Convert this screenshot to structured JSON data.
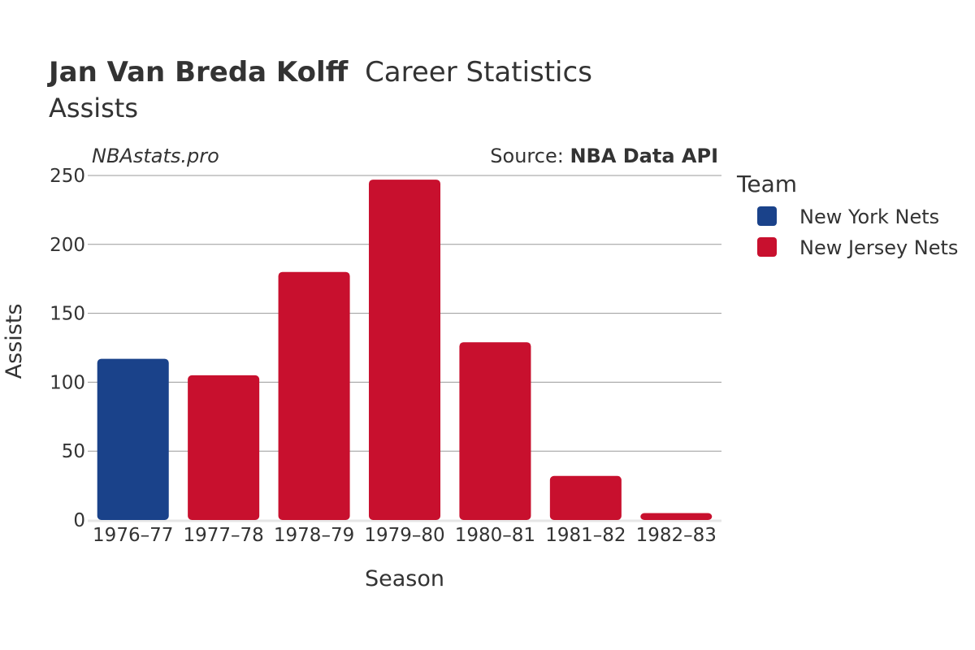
{
  "title": {
    "player": "Jan Van Breda Kolff",
    "suffix": "Career Statistics",
    "subtitle": "Assists"
  },
  "watermark": "NBAstats.pro",
  "source": {
    "prefix": "Source: ",
    "name": "NBA Data API"
  },
  "legend": {
    "title": "Team",
    "items": [
      {
        "label": "New York Nets",
        "color": "#1a428a"
      },
      {
        "label": "New Jersey Nets",
        "color": "#c8102e"
      }
    ]
  },
  "chart_data": {
    "type": "bar",
    "title": "Jan Van Breda Kolff Career Statistics",
    "subtitle": "Assists",
    "xlabel": "Season",
    "ylabel": "Assists",
    "categories": [
      "1976–77",
      "1977–78",
      "1978–79",
      "1979–80",
      "1980–81",
      "1981–82",
      "1982–83"
    ],
    "values": [
      117,
      105,
      180,
      247,
      129,
      32,
      5
    ],
    "teams": [
      "New York Nets",
      "New Jersey Nets",
      "New Jersey Nets",
      "New Jersey Nets",
      "New Jersey Nets",
      "New Jersey Nets",
      "New Jersey Nets"
    ],
    "series_colors": {
      "New York Nets": "#1a428a",
      "New Jersey Nets": "#c8102e"
    },
    "ylim": [
      0,
      250
    ],
    "yticks": [
      0,
      50,
      100,
      150,
      200,
      250
    ],
    "grid": true,
    "legend_position": "right"
  }
}
